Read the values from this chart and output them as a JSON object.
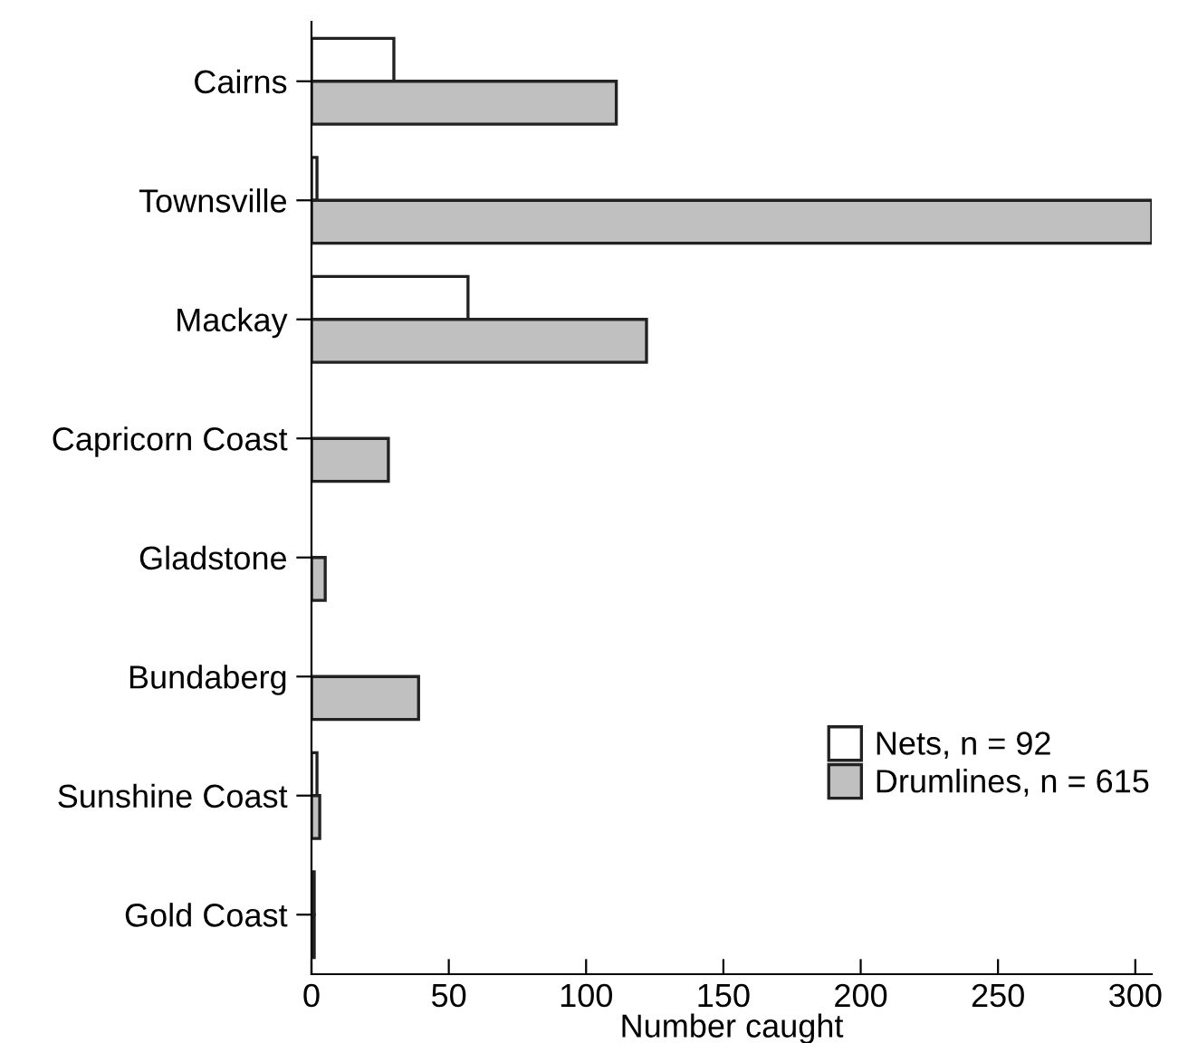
{
  "chart_data": {
    "type": "bar",
    "orientation": "horizontal",
    "xlabel": "Number caught",
    "categories": [
      "Cairns",
      "Townsville",
      "Mackay",
      "Capricorn Coast",
      "Gladstone",
      "Bundaberg",
      "Sunshine Coast",
      "Gold Coast"
    ],
    "series": [
      {
        "name": "Nets, n = 92",
        "color": "#ffffff",
        "values": [
          30,
          2,
          57,
          0,
          0,
          0,
          2,
          1
        ]
      },
      {
        "name": "Drumlines, n = 615",
        "color": "#c0c0c0",
        "values": [
          111,
          306,
          122,
          28,
          5,
          39,
          3,
          1
        ]
      }
    ],
    "xlim": [
      0,
      306
    ],
    "xticks": [
      0,
      50,
      100,
      150,
      200,
      250,
      300
    ],
    "grid": false,
    "legend": "bottom right"
  }
}
